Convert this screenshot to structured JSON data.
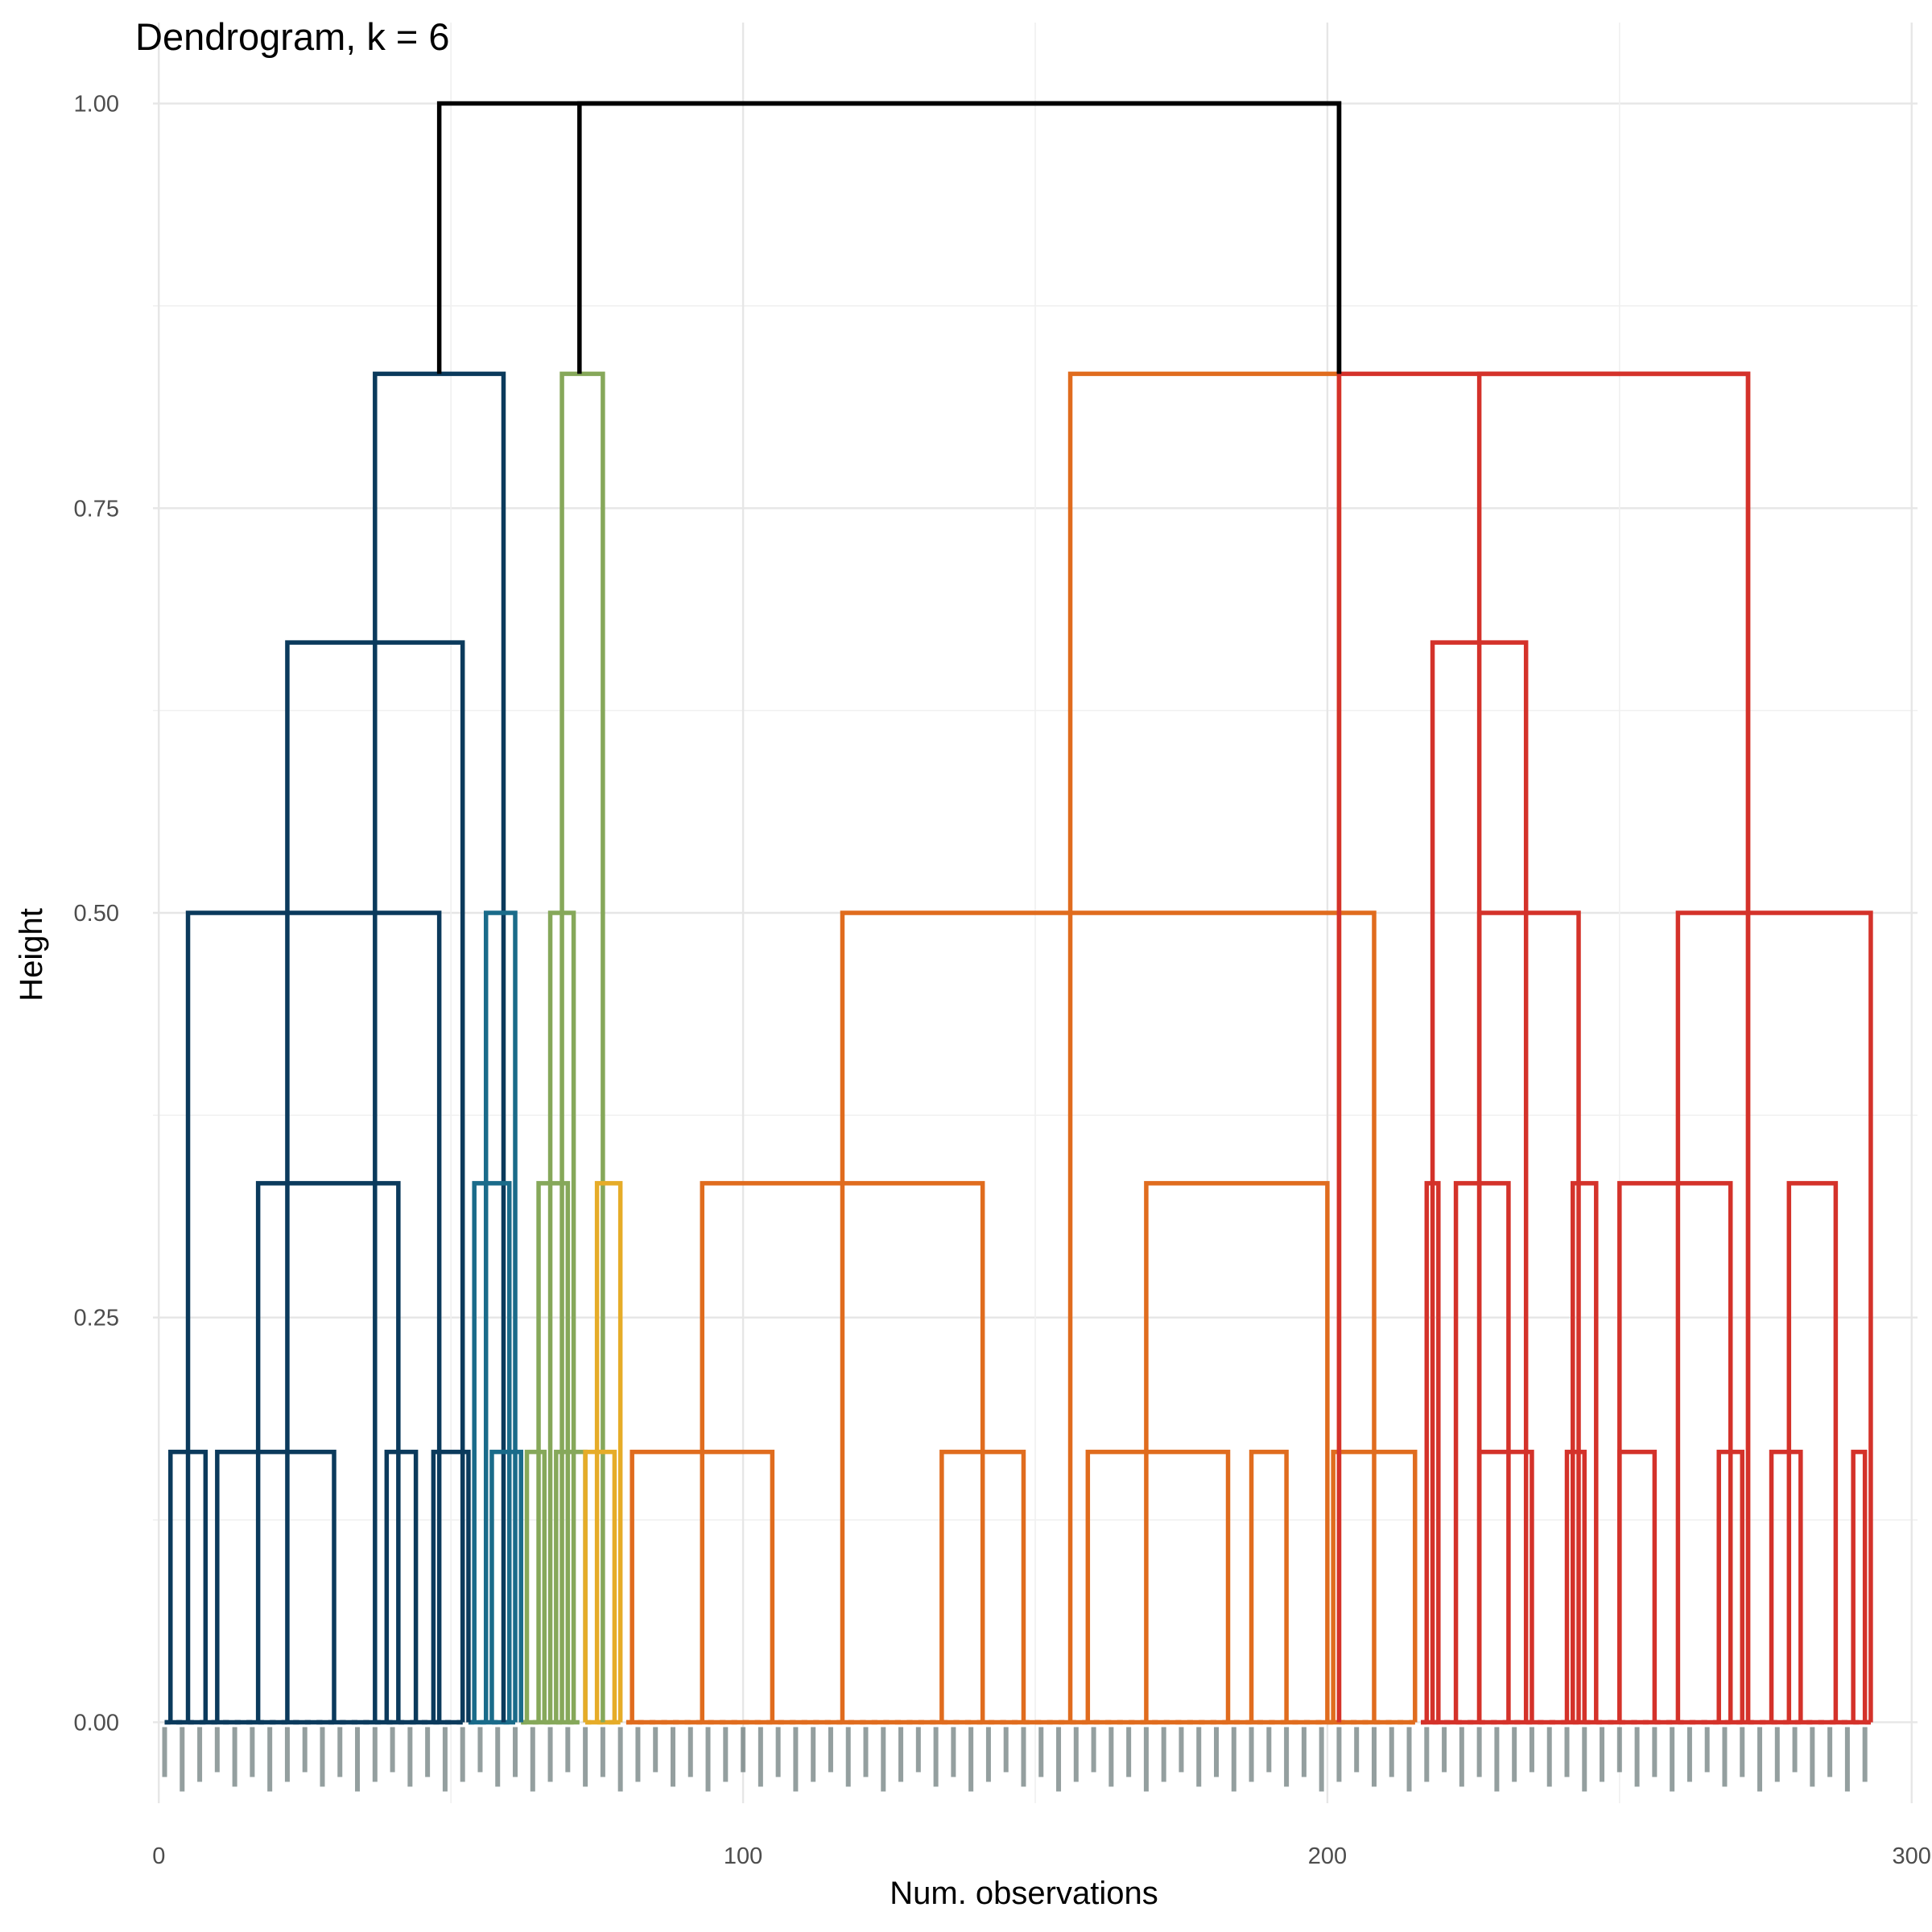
{
  "chart_data": {
    "type": "dendrogram",
    "title": "Dendrogram, k = 6",
    "xlabel": "Num. observations",
    "ylabel": "Height",
    "xlim": [
      -1,
      301
    ],
    "ylim": [
      -0.05,
      1.05
    ],
    "x_ticks": [
      0,
      100,
      200,
      300
    ],
    "x_tick_labels": [
      "0",
      "100",
      "200",
      "300"
    ],
    "y_ticks": [
      0,
      0.25,
      0.5,
      0.75,
      1
    ],
    "y_tick_labels": [
      "0.00",
      "0.25",
      "0.50",
      "0.75",
      "1.00"
    ],
    "grid": true,
    "k": 6,
    "n_leaves": 293,
    "root_height": 1.0,
    "root_color": "#000000",
    "top_links": [
      {
        "x_left": 48,
        "x_right": 202,
        "height": 1.0
      },
      {
        "x_left": 72,
        "x_right": 202,
        "height": 1.0
      }
    ],
    "cluster_colors": [
      "#0b3a5c",
      "#1a6b8a",
      "#86a85a",
      "#e6ac28",
      "#e06c1e",
      "#d4322a"
    ],
    "clusters": [
      {
        "cluster": 1,
        "color": "#0b3a5c",
        "x_range": [
          1,
          52
        ],
        "top_height": 0.833,
        "merges": [
          {
            "x_left": 37,
            "x_right": 59,
            "height": 0.833
          },
          {
            "x_left": 22,
            "x_right": 52,
            "height": 0.667
          },
          {
            "x_left": 5,
            "x_right": 48,
            "height": 0.5
          },
          {
            "x_left": 17,
            "x_right": 41,
            "height": 0.333
          },
          {
            "x_left": 2,
            "x_right": 8,
            "height": 0.167
          },
          {
            "x_left": 10,
            "x_right": 30,
            "height": 0.167
          },
          {
            "x_left": 39,
            "x_right": 44,
            "height": 0.167
          },
          {
            "x_left": 47,
            "x_right": 53,
            "height": 0.167
          }
        ]
      },
      {
        "cluster": 2,
        "color": "#1a6b8a",
        "x_range": [
          53,
          61
        ],
        "top_height": 0.5,
        "merges": [
          {
            "x_left": 56,
            "x_right": 61,
            "height": 0.5
          },
          {
            "x_left": 54,
            "x_right": 60,
            "height": 0.333
          },
          {
            "x_left": 57,
            "x_right": 62,
            "height": 0.167
          }
        ]
      },
      {
        "cluster": 3,
        "color": "#86a85a",
        "x_range": [
          62,
          72
        ],
        "top_height": 0.833,
        "merges": [
          {
            "x_left": 69,
            "x_right": 76,
            "height": 0.833
          },
          {
            "x_left": 67,
            "x_right": 71,
            "height": 0.5
          },
          {
            "x_left": 65,
            "x_right": 70,
            "height": 0.333
          },
          {
            "x_left": 63,
            "x_right": 66,
            "height": 0.167
          },
          {
            "x_left": 68,
            "x_right": 73,
            "height": 0.167
          }
        ]
      },
      {
        "cluster": 4,
        "color": "#e6ac28",
        "x_range": [
          73,
          79
        ],
        "top_height": 0.333,
        "merges": [
          {
            "x_left": 75,
            "x_right": 79,
            "height": 0.333
          },
          {
            "x_left": 73,
            "x_right": 78,
            "height": 0.167
          }
        ]
      },
      {
        "cluster": 5,
        "color": "#e06c1e",
        "x_range": [
          80,
          215
        ],
        "top_height": 0.833,
        "merges": [
          {
            "x_left": 156,
            "x_right": 202,
            "height": 0.833
          },
          {
            "x_left": 117,
            "x_right": 208,
            "height": 0.5
          },
          {
            "x_left": 93,
            "x_right": 141,
            "height": 0.333
          },
          {
            "x_left": 169,
            "x_right": 200,
            "height": 0.333
          },
          {
            "x_left": 81,
            "x_right": 105,
            "height": 0.167
          },
          {
            "x_left": 134,
            "x_right": 148,
            "height": 0.167
          },
          {
            "x_left": 159,
            "x_right": 183,
            "height": 0.167
          },
          {
            "x_left": 187,
            "x_right": 193,
            "height": 0.167
          },
          {
            "x_left": 201,
            "x_right": 215,
            "height": 0.167
          }
        ]
      },
      {
        "cluster": 6,
        "color": "#d4322a",
        "x_range": [
          216,
          293
        ],
        "top_height": 0.833,
        "merges": [
          {
            "x_left": 202,
            "x_right": 272,
            "height": 0.833
          },
          {
            "x_left": 226,
            "x_right": 272,
            "height": 0.833
          },
          {
            "x_left": 218,
            "x_right": 234,
            "height": 0.667
          },
          {
            "x_left": 226,
            "x_right": 243,
            "height": 0.5
          },
          {
            "x_left": 260,
            "x_right": 293,
            "height": 0.5
          },
          {
            "x_left": 217,
            "x_right": 219,
            "height": 0.333
          },
          {
            "x_left": 222,
            "x_right": 231,
            "height": 0.333
          },
          {
            "x_left": 242,
            "x_right": 246,
            "height": 0.333
          },
          {
            "x_left": 250,
            "x_right": 269,
            "height": 0.333
          },
          {
            "x_left": 279,
            "x_right": 287,
            "height": 0.333
          },
          {
            "x_left": 226,
            "x_right": 235,
            "height": 0.167
          },
          {
            "x_left": 241,
            "x_right": 244,
            "height": 0.167
          },
          {
            "x_left": 250,
            "x_right": 256,
            "height": 0.167
          },
          {
            "x_left": 267,
            "x_right": 271,
            "height": 0.167
          },
          {
            "x_left": 276,
            "x_right": 281,
            "height": 0.167
          },
          {
            "x_left": 290,
            "x_right": 292,
            "height": 0.167
          }
        ]
      }
    ]
  }
}
